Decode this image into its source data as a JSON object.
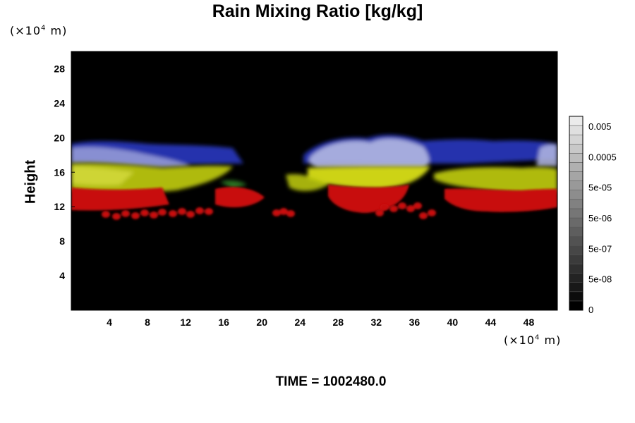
{
  "chart_data": {
    "type": "heatmap",
    "title": "Rain Mixing Ratio [kg/kg]",
    "ylabel": "Height",
    "y_unit": "(×10⁴ m)",
    "x_unit": "(×10⁴ m)",
    "footer": "TIME = 1002480.0",
    "xlim": [
      0,
      51
    ],
    "ylim": [
      0,
      30
    ],
    "xticks": [
      4,
      8,
      12,
      16,
      20,
      24,
      28,
      32,
      36,
      40,
      44,
      48
    ],
    "yticks": [
      4,
      8,
      12,
      16,
      20,
      24,
      28
    ],
    "colorbar": {
      "labels": [
        "0.005",
        "0.0005",
        "5e-05",
        "5e-06",
        "5e-07",
        "5e-08",
        "0"
      ],
      "levels": 21
    },
    "background_color": "#000000",
    "layers": [
      {
        "name": "blue",
        "color": "#2a3ccc",
        "y_range": [
          17.5,
          19.5
        ]
      },
      {
        "name": "yellow",
        "color": "#c8d010",
        "y_range": [
          14,
          17.5
        ]
      },
      {
        "name": "red",
        "color": "#d01010",
        "y_range": [
          11,
          14
        ]
      }
    ]
  },
  "labels": {
    "title": "Rain Mixing Ratio [kg/kg]",
    "ylabel": "Height",
    "y_unit_text": "(×10",
    "y_unit_exp": "4",
    "y_unit_tail": " m)",
    "x_unit_text": "(×10",
    "x_unit_exp": "4",
    "x_unit_tail": " m)",
    "footer": "TIME = 1002480.0"
  }
}
